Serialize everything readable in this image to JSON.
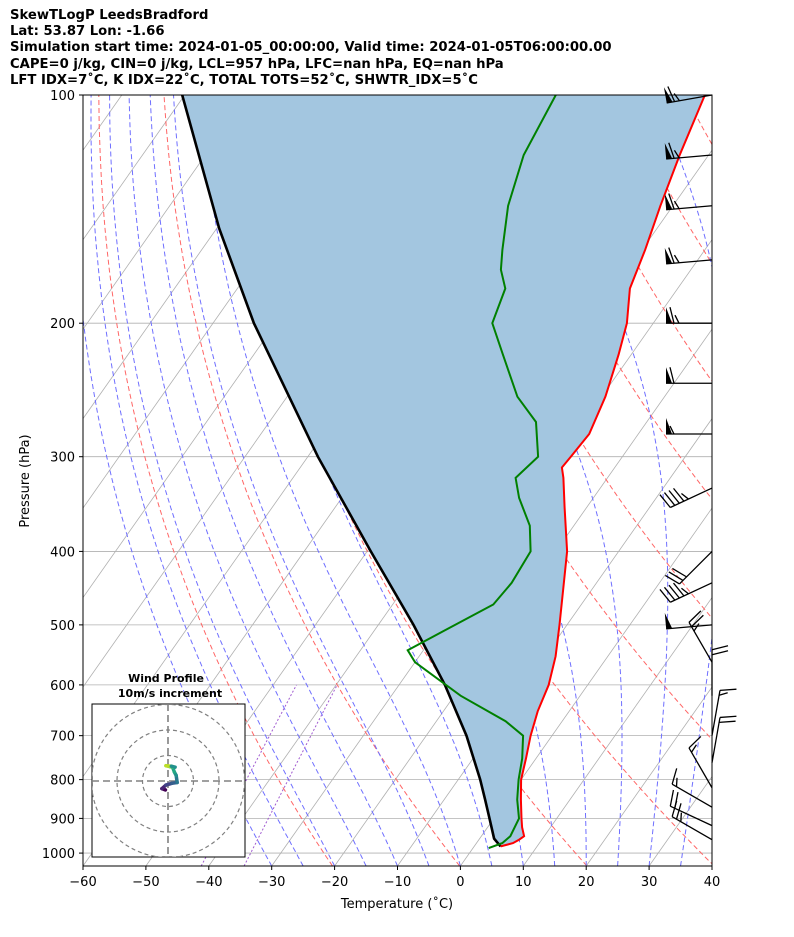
{
  "header": {
    "line1": "SkewTLogP LeedsBradford",
    "line2": "Lat: 53.87   Lon: -1.66",
    "line3": "Simulation start time: 2024-01-05_00:00:00, Valid time: 2024-01-05T06:00:00.00",
    "line4": "CAPE=0 j/kg, CIN=0 j/kg, LCL=957 hPa, LFC=nan hPa, EQ=nan hPa",
    "line5": "LFT IDX=7˚C, K IDX=22˚C, TOTAL TOTS=52˚C, SHWTR_IDX=5˚C"
  },
  "chart_data": {
    "type": "skewt-logp",
    "xlabel": "Temperature (˚C)",
    "ylabel": "Pressure (hPa)",
    "xlim": [
      -60,
      40
    ],
    "ylim": [
      1040,
      100
    ],
    "x_ticks": [
      -60,
      -50,
      -40,
      -30,
      -20,
      -10,
      0,
      10,
      20,
      30,
      40
    ],
    "x_tick_labels": [
      "−60",
      "−50",
      "−40",
      "−30",
      "−20",
      "−10",
      "0",
      "10",
      "20",
      "30",
      "40"
    ],
    "y_ticks": [
      1000,
      900,
      800,
      700,
      600,
      500,
      400,
      300,
      200,
      100
    ],
    "y_tick_labels": [
      "1000",
      "900",
      "800",
      "700",
      "600",
      "500",
      "400",
      "300",
      "200",
      "100"
    ],
    "colors": {
      "temperature": "#ff0000",
      "dewpoint": "#008000",
      "parcel": "#000000",
      "cape_fill": "#a3c6e0",
      "dry_adiabats": "#ff6666",
      "moist_adiabats": "#6f6fff",
      "mixing_ratio": "#a05bd0",
      "isotherms": "#b0b0b0"
    },
    "series": [
      {
        "name": "temperature",
        "points": [
          [
            980,
            4.2
          ],
          [
            970,
            5.8
          ],
          [
            960,
            6.4
          ],
          [
            950,
            6.8
          ],
          [
            925,
            5.5
          ],
          [
            900,
            4.4
          ],
          [
            850,
            2.2
          ],
          [
            800,
            0.0
          ],
          [
            750,
            -1.6
          ],
          [
            700,
            -3.4
          ],
          [
            650,
            -5.0
          ],
          [
            600,
            -6.2
          ],
          [
            550,
            -8.3
          ],
          [
            500,
            -11.2
          ],
          [
            450,
            -14.5
          ],
          [
            400,
            -18.2
          ],
          [
            350,
            -23.5
          ],
          [
            320,
            -27.0
          ],
          [
            310,
            -28.4
          ],
          [
            300,
            -28.2
          ],
          [
            280,
            -27.8
          ],
          [
            250,
            -29.4
          ],
          [
            220,
            -32.0
          ],
          [
            200,
            -34.2
          ],
          [
            180,
            -37.6
          ],
          [
            160,
            -39.5
          ],
          [
            140,
            -42.0
          ],
          [
            120,
            -44.6
          ],
          [
            100,
            -47.3
          ]
        ]
      },
      {
        "name": "dewpoint",
        "points": [
          [
            985,
            2.5
          ],
          [
            970,
            4.1
          ],
          [
            950,
            4.6
          ],
          [
            900,
            4.0
          ],
          [
            850,
            1.6
          ],
          [
            800,
            -0.4
          ],
          [
            750,
            -2.2
          ],
          [
            700,
            -4.6
          ],
          [
            670,
            -9.0
          ],
          [
            620,
            -19.0
          ],
          [
            560,
            -30.0
          ],
          [
            540,
            -32.5
          ],
          [
            510,
            -29.0
          ],
          [
            470,
            -24.0
          ],
          [
            440,
            -23.5
          ],
          [
            400,
            -24.0
          ],
          [
            370,
            -27.0
          ],
          [
            340,
            -31.8
          ],
          [
            320,
            -34.6
          ],
          [
            300,
            -33.4
          ],
          [
            270,
            -37.6
          ],
          [
            250,
            -43.4
          ],
          [
            220,
            -50.4
          ],
          [
            200,
            -55.6
          ],
          [
            180,
            -57.4
          ],
          [
            170,
            -60.2
          ],
          [
            160,
            -62.2
          ],
          [
            140,
            -66.2
          ],
          [
            120,
            -69.4
          ],
          [
            100,
            -71.0
          ]
        ]
      },
      {
        "name": "parcel",
        "points": [
          [
            980,
            4.2
          ],
          [
            957,
            2.3
          ],
          [
            900,
            -0.7
          ],
          [
            850,
            -3.5
          ],
          [
            800,
            -6.5
          ],
          [
            700,
            -13.6
          ],
          [
            600,
            -22.7
          ],
          [
            500,
            -34.4
          ],
          [
            400,
            -49.4
          ],
          [
            300,
            -68.4
          ],
          [
            200,
            -93.5
          ],
          [
            150,
            -109.6
          ],
          [
            100,
            -130.4
          ]
        ]
      }
    ],
    "wind_barbs": [
      {
        "p": 100,
        "speed_kt": 65,
        "dir_deg": 260
      },
      {
        "p": 120,
        "speed_kt": 65,
        "dir_deg": 265
      },
      {
        "p": 140,
        "speed_kt": 65,
        "dir_deg": 265
      },
      {
        "p": 165,
        "speed_kt": 65,
        "dir_deg": 265
      },
      {
        "p": 200,
        "speed_kt": 65,
        "dir_deg": 270
      },
      {
        "p": 240,
        "speed_kt": 60,
        "dir_deg": 270
      },
      {
        "p": 280,
        "speed_kt": 55,
        "dir_deg": 270
      },
      {
        "p": 330,
        "speed_kt": 45,
        "dir_deg": 245
      },
      {
        "p": 400,
        "speed_kt": 30,
        "dir_deg": 225
      },
      {
        "p": 440,
        "speed_kt": 45,
        "dir_deg": 245
      },
      {
        "p": 500,
        "speed_kt": 50,
        "dir_deg": 265
      },
      {
        "p": 560,
        "speed_kt": 25,
        "dir_deg": 330
      },
      {
        "p": 620,
        "speed_kt": 20,
        "dir_deg": 0
      },
      {
        "p": 700,
        "speed_kt": 15,
        "dir_deg": 10
      },
      {
        "p": 760,
        "speed_kt": 20,
        "dir_deg": 10
      },
      {
        "p": 820,
        "speed_kt": 15,
        "dir_deg": 330
      },
      {
        "p": 870,
        "speed_kt": 15,
        "dir_deg": 300
      },
      {
        "p": 920,
        "speed_kt": 20,
        "dir_deg": 295
      },
      {
        "p": 960,
        "speed_kt": 25,
        "dir_deg": 300
      }
    ],
    "hodograph": {
      "title": "Wind Profile",
      "subtitle": "10m/s increment",
      "rings_ms": [
        10,
        20,
        30
      ],
      "range_ms": 30,
      "points": [
        [
          -1.0,
          -3.5
        ],
        [
          -2.4,
          -3.0
        ],
        [
          -0.8,
          -1.6
        ],
        [
          1.5,
          -0.9
        ],
        [
          3.6,
          -0.6
        ],
        [
          3.2,
          2.2
        ],
        [
          2.5,
          3.5
        ],
        [
          1.8,
          5.4
        ],
        [
          0.8,
          5.6
        ],
        [
          -0.8,
          6.0
        ],
        [
          1.3,
          5.8
        ],
        [
          2.8,
          5.4
        ]
      ]
    }
  }
}
